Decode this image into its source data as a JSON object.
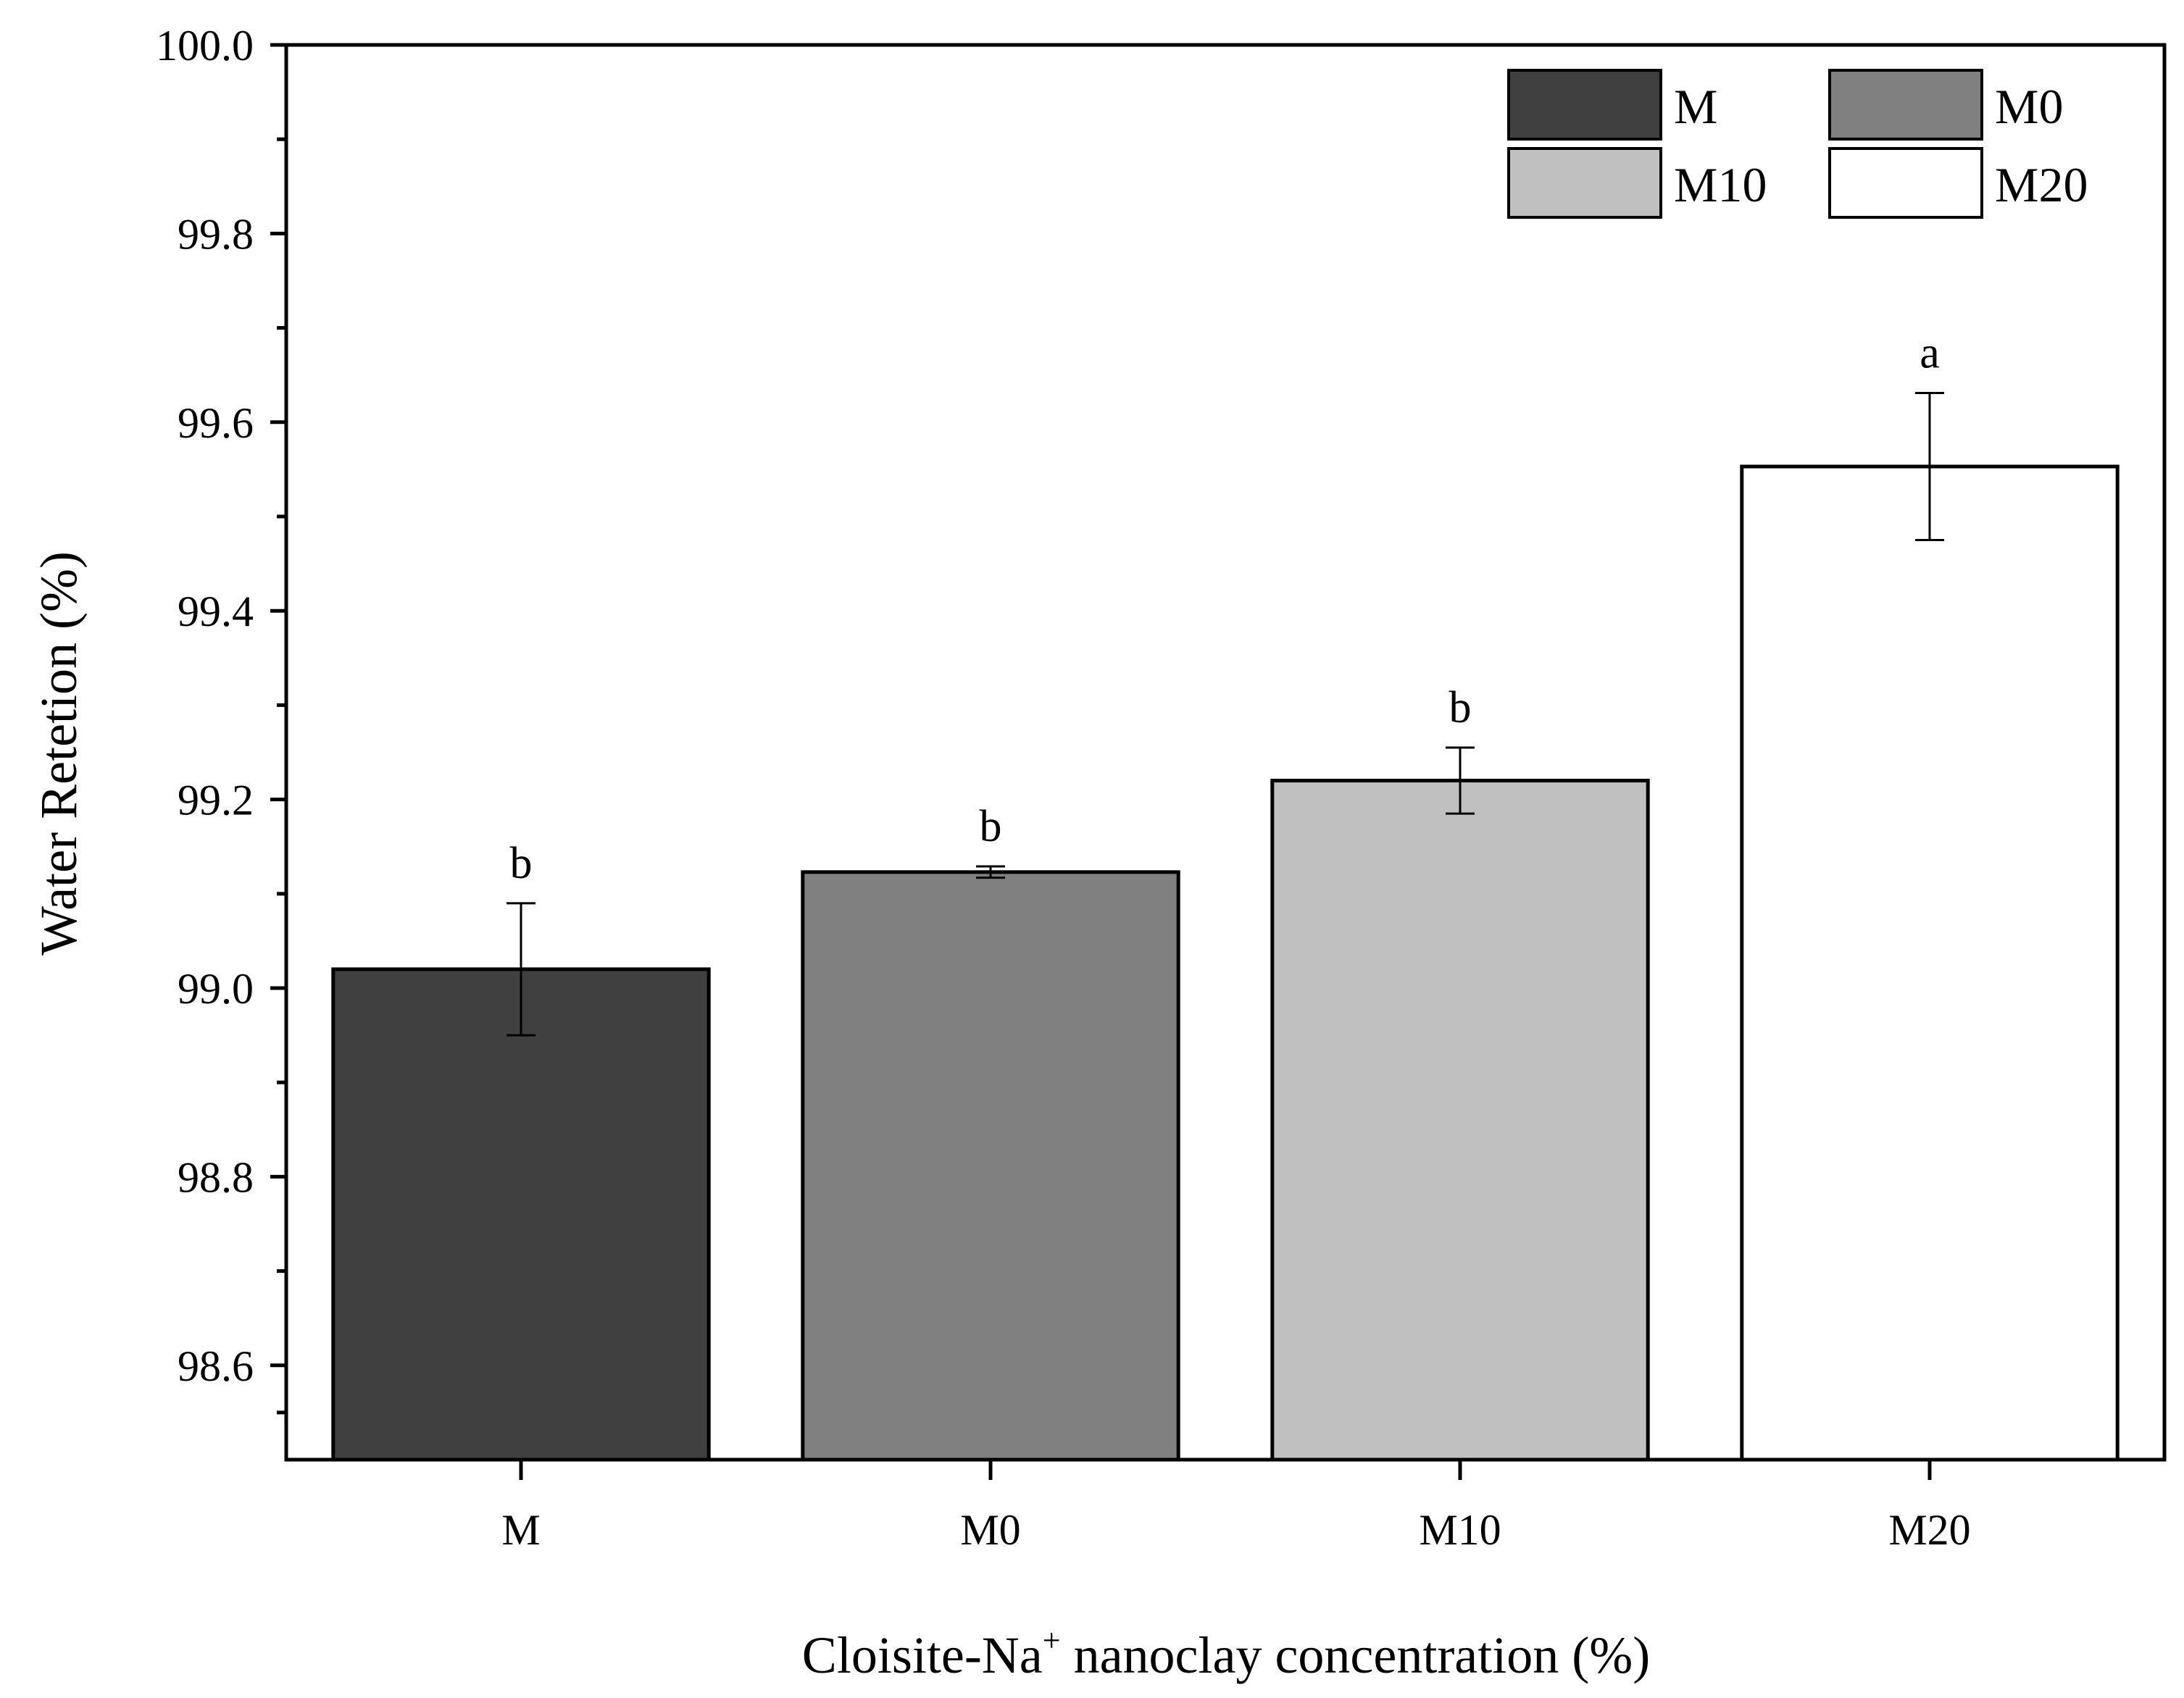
{
  "chart_data": {
    "type": "bar",
    "categories": [
      "M",
      "M0",
      "M10",
      "M20"
    ],
    "values": [
      99.02,
      99.123,
      99.22,
      99.553
    ],
    "errors": [
      0.07,
      0.006,
      0.035,
      0.078
    ],
    "significance": [
      "b",
      "b",
      "b",
      "a"
    ],
    "colors": [
      "#404040",
      "#808080",
      "#c0c0c0",
      "#ffffff"
    ],
    "ylim": [
      98.5,
      100.0
    ],
    "yticks": [
      98.6,
      98.8,
      99.0,
      99.2,
      99.4,
      99.6,
      99.8,
      100.0
    ],
    "ytick_labels": [
      "98.6",
      "98.8",
      "99.0",
      "99.2",
      "99.4",
      "99.6",
      "99.8",
      "100.0"
    ],
    "ylabel": "Water Retetion (%)",
    "xlabel_main": "Cloisite-Na",
    "xlabel_sup": "+",
    "xlabel_rest": " nanoclay concentration (%)",
    "legend": {
      "position": "top-right",
      "entries": [
        {
          "label": "M",
          "color": "#404040"
        },
        {
          "label": "M0",
          "color": "#808080"
        },
        {
          "label": "M10",
          "color": "#c0c0c0"
        },
        {
          "label": "M20",
          "color": "#ffffff"
        }
      ]
    }
  }
}
